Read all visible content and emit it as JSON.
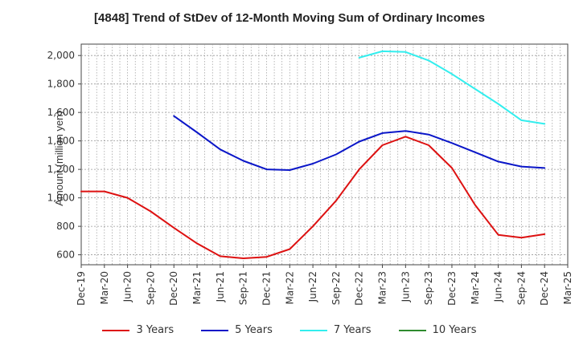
{
  "chart_data": {
    "type": "line",
    "title": "[4848]  Trend of StDev of 12-Month Moving Sum of Ordinary Incomes",
    "ylabel": "Amount (million yen)",
    "xlabel": "",
    "ylim": [
      530,
      2080
    ],
    "yticks": [
      600,
      800,
      1000,
      1200,
      1400,
      1600,
      1800,
      2000
    ],
    "ytick_labels": [
      "600",
      "800",
      "1,000",
      "1,200",
      "1,400",
      "1,600",
      "1,800",
      "2,000"
    ],
    "categories": [
      "Dec-19",
      "Mar-20",
      "Jun-20",
      "Sep-20",
      "Dec-20",
      "Mar-21",
      "Jun-21",
      "Sep-21",
      "Dec-21",
      "Mar-22",
      "Jun-22",
      "Sep-22",
      "Dec-22",
      "Mar-23",
      "Jun-23",
      "Sep-23",
      "Dec-23",
      "Mar-24",
      "Jun-24",
      "Sep-24",
      "Dec-24",
      "Mar-25"
    ],
    "grid": true,
    "legend_position": "bottom",
    "series": [
      {
        "name": "3 Years",
        "color": "#dd1111",
        "values": [
          1045,
          1045,
          1000,
          905,
          790,
          680,
          590,
          575,
          585,
          640,
          800,
          980,
          1200,
          1370,
          1430,
          1370,
          1210,
          950,
          740,
          720,
          745,
          null
        ]
      },
      {
        "name": "5 Years",
        "color": "#0a16c8",
        "values": [
          null,
          null,
          null,
          null,
          1575,
          1460,
          1340,
          1260,
          1200,
          1195,
          1240,
          1305,
          1395,
          1455,
          1470,
          1445,
          1385,
          1320,
          1255,
          1220,
          1210,
          null
        ]
      },
      {
        "name": "7 Years",
        "color": "#33eeee",
        "values": [
          null,
          null,
          null,
          null,
          null,
          null,
          null,
          null,
          null,
          null,
          null,
          null,
          1985,
          2030,
          2025,
          1965,
          1870,
          1765,
          1660,
          1545,
          1520,
          null
        ]
      },
      {
        "name": "10 Years",
        "color": "#2e8b2e",
        "values": [
          null,
          null,
          null,
          null,
          null,
          null,
          null,
          null,
          null,
          null,
          null,
          null,
          null,
          null,
          null,
          null,
          null,
          null,
          null,
          null,
          null,
          null
        ]
      }
    ]
  }
}
